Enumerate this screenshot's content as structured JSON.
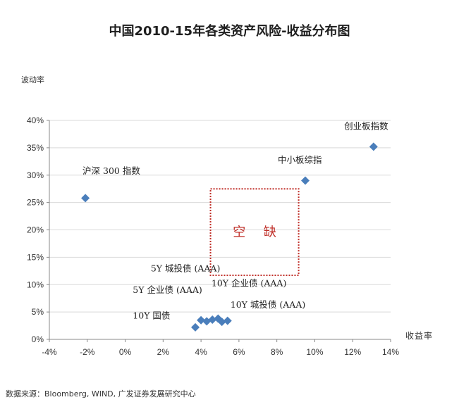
{
  "title": "中国2010-15年各类资产风险-收益分布图",
  "source": "数据来源：Bloomberg, WIND, 广发证券发展研究中心",
  "chart_data": {
    "type": "scatter",
    "title": "中国2010-15年各类资产风险-收益分布图",
    "xlabel": "收益率",
    "ylabel": "波动率",
    "xlim": [
      -0.04,
      0.14
    ],
    "ylim": [
      0,
      0.4
    ],
    "x_ticks": [
      "-4%",
      "-2%",
      "0%",
      "2%",
      "4%",
      "6%",
      "8%",
      "10%",
      "12%",
      "14%"
    ],
    "y_ticks": [
      "0%",
      "5%",
      "10%",
      "15%",
      "20%",
      "25%",
      "30%",
      "35%",
      "40%"
    ],
    "grid": "horizontal",
    "marker_color": "#4a7ebb",
    "points": [
      {
        "x": -0.021,
        "y": 0.258
      },
      {
        "x": 0.095,
        "y": 0.29
      },
      {
        "x": 0.131,
        "y": 0.352
      },
      {
        "x": 0.037,
        "y": 0.022
      },
      {
        "x": 0.04,
        "y": 0.035
      },
      {
        "x": 0.043,
        "y": 0.033
      },
      {
        "x": 0.046,
        "y": 0.036
      },
      {
        "x": 0.049,
        "y": 0.038
      },
      {
        "x": 0.051,
        "y": 0.032
      },
      {
        "x": 0.054,
        "y": 0.034
      }
    ],
    "annotations": [
      {
        "text": "沪深 300 指数",
        "x": -0.0225,
        "y": 0.302
      },
      {
        "text": "中小板综指",
        "x": 0.0805,
        "y": 0.322
      },
      {
        "text": "创业板指数",
        "x": 0.1155,
        "y": 0.384
      },
      {
        "text": "5Y 城投债 (AAA)",
        "x": 0.0135,
        "y": 0.124
      },
      {
        "text": "5Y 企业债 (AAA)",
        "x": 0.004,
        "y": 0.085
      },
      {
        "text": "10Y 企业债 (AAA)",
        "x": 0.0455,
        "y": 0.097
      },
      {
        "text": "10Y 国债",
        "x": 0.004,
        "y": 0.038
      },
      {
        "text": "10Y 城投债 (AAA)",
        "x": 0.0555,
        "y": 0.058
      }
    ],
    "gap_box": {
      "label": "空 缺",
      "x_range": [
        0.045,
        0.0915
      ],
      "y_range": [
        0.117,
        0.275
      ],
      "color": "#c0302a"
    }
  }
}
